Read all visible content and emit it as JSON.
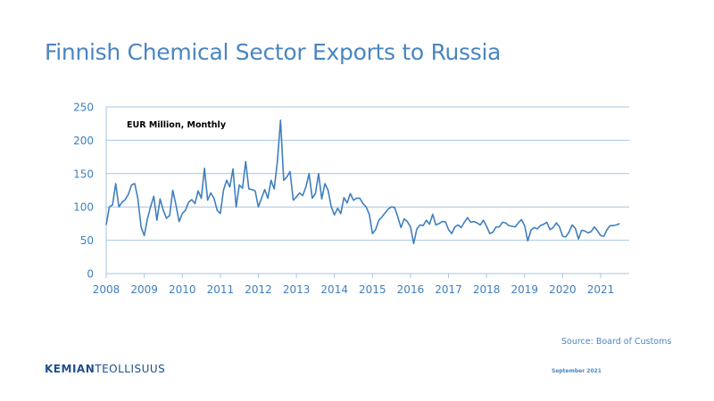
{
  "title": "Finnish Chemical Sector Exports to Russia",
  "source": "Source: Board of Customs",
  "logo": {
    "part1": "KEMIAN",
    "part2": "TEOLLISUUS"
  },
  "date": "September 2021",
  "colors": {
    "line": "#3f7fbf",
    "axis_text": "#3f7fbf",
    "grid": "#a9c4df",
    "title": "#4a86c0"
  },
  "chart_data": {
    "type": "line",
    "title": "",
    "annotation": "EUR Million, Monthly",
    "xlabel": "",
    "ylabel": "",
    "xlim": [
      2008,
      2021.75
    ],
    "ylim": [
      0,
      250
    ],
    "y_ticks": [
      0,
      50,
      100,
      150,
      200,
      250
    ],
    "x_ticks": [
      2008,
      2009,
      2010,
      2011,
      2012,
      2013,
      2014,
      2015,
      2016,
      2017,
      2018,
      2019,
      2020,
      2021
    ],
    "grid": true,
    "series": [
      {
        "start": "2008-01",
        "frequency": "monthly",
        "values": [
          73,
          100,
          103,
          135,
          100,
          107,
          111,
          119,
          133,
          135,
          112,
          70,
          57,
          82,
          100,
          116,
          80,
          112,
          95,
          83,
          87,
          125,
          103,
          78,
          90,
          95,
          107,
          111,
          105,
          124,
          113,
          158,
          110,
          121,
          113,
          95,
          90,
          125,
          140,
          130,
          157,
          100,
          133,
          128,
          168,
          127,
          126,
          124,
          100,
          113,
          126,
          113,
          140,
          127,
          168,
          230,
          140,
          145,
          153,
          110,
          115,
          121,
          117,
          130,
          150,
          113,
          120,
          150,
          112,
          135,
          125,
          100,
          88,
          98,
          90,
          114,
          106,
          120,
          110,
          113,
          113,
          105,
          100,
          89,
          60,
          66,
          80,
          85,
          91,
          97,
          100,
          99,
          85,
          69,
          82,
          78,
          70,
          45,
          67,
          73,
          72,
          80,
          74,
          89,
          73,
          75,
          78,
          78,
          66,
          60,
          70,
          73,
          69,
          77,
          84,
          77,
          78,
          76,
          73,
          80,
          71,
          60,
          62,
          70,
          70,
          77,
          76,
          72,
          71,
          70,
          76,
          81,
          72,
          49,
          65,
          69,
          67,
          72,
          74,
          77,
          66,
          69,
          76,
          70,
          56,
          55,
          62,
          73,
          68,
          52,
          65,
          64,
          61,
          63,
          70,
          64,
          57,
          56,
          66,
          72,
          72,
          73,
          75
        ]
      }
    ]
  }
}
